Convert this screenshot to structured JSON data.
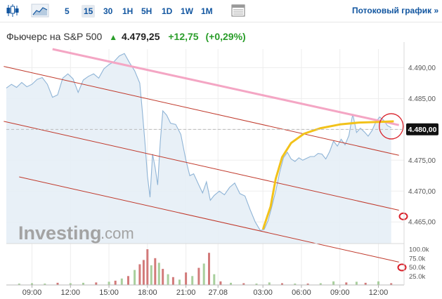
{
  "toolbar": {
    "timeframes": [
      "5",
      "15",
      "30",
      "1H",
      "5H",
      "1D",
      "1W",
      "1M"
    ],
    "active_timeframe": "15",
    "stream_link": "Потоковый график",
    "stream_arrow": "»"
  },
  "quote": {
    "name": "Фьючерс на S&P 500",
    "arrow": "▲",
    "price": "4.479,25",
    "change": "+12,75",
    "change_pct": "(+0,29%)"
  },
  "price_label": "4.480,00",
  "logo": {
    "main": "Investing",
    "suffix": ".com"
  },
  "colors": {
    "price_line": "#8fb4d6",
    "price_fill": "#e5eef6",
    "up_bar": "#a9cf9d",
    "down_bar": "#d27a7a",
    "channel": "#c0392b",
    "top_trend": "#f4a6c4",
    "curve": "#f2c21a",
    "circle": "#d9202a"
  },
  "chart_data": {
    "type": "line",
    "y_ticks": [
      "4.465,00",
      "4.470,00",
      "4.475,00",
      "4.480,00",
      "4.485,00",
      "4.490,00"
    ],
    "ylim": [
      4461.5,
      4493.0
    ],
    "x_ticks": [
      {
        "label": "09:00",
        "t": 2
      },
      {
        "label": "12:00",
        "t": 5
      },
      {
        "label": "15:00",
        "t": 8
      },
      {
        "label": "18:00",
        "t": 11
      },
      {
        "label": "21:00",
        "t": 14
      },
      {
        "label": "27.08",
        "t": 16.5
      },
      {
        "label": "03:00",
        "t": 20
      },
      {
        "label": "06:00",
        "t": 23
      },
      {
        "label": "09:00",
        "t": 26
      },
      {
        "label": "12:00",
        "t": 29
      }
    ],
    "x_range": [
      0,
      31
    ],
    "price": [
      [
        0.0,
        4486.7
      ],
      [
        0.4,
        4487.3
      ],
      [
        0.8,
        4486.8
      ],
      [
        1.2,
        4487.6
      ],
      [
        1.6,
        4486.9
      ],
      [
        2.0,
        4487.3
      ],
      [
        2.4,
        4488.1
      ],
      [
        2.8,
        4488.4
      ],
      [
        3.2,
        4487.3
      ],
      [
        3.6,
        4485.2
      ],
      [
        4.0,
        4485.6
      ],
      [
        4.4,
        4488.3
      ],
      [
        4.8,
        4489.0
      ],
      [
        5.2,
        4488.2
      ],
      [
        5.6,
        4486.0
      ],
      [
        6.0,
        4488.0
      ],
      [
        6.4,
        4488.6
      ],
      [
        6.8,
        4489.0
      ],
      [
        7.2,
        4488.3
      ],
      [
        7.6,
        4489.8
      ],
      [
        8.0,
        4490.5
      ],
      [
        8.4,
        4491.0
      ],
      [
        8.8,
        4491.9
      ],
      [
        9.2,
        4492.3
      ],
      [
        9.6,
        4490.8
      ],
      [
        10.0,
        4489.5
      ],
      [
        10.4,
        4487.5
      ],
      [
        10.6,
        4483.0
      ],
      [
        10.8,
        4478.0
      ],
      [
        11.0,
        4472.5
      ],
      [
        11.2,
        4469.0
      ],
      [
        11.4,
        4476.0
      ],
      [
        11.6,
        4473.8
      ],
      [
        11.8,
        4471.0
      ],
      [
        12.0,
        4478.0
      ],
      [
        12.2,
        4483.0
      ],
      [
        12.5,
        4482.3
      ],
      [
        12.8,
        4481.0
      ],
      [
        13.2,
        4480.8
      ],
      [
        13.6,
        4479.2
      ],
      [
        14.0,
        4475.0
      ],
      [
        14.3,
        4472.5
      ],
      [
        14.6,
        4472.8
      ],
      [
        15.0,
        4471.0
      ],
      [
        15.3,
        4469.7
      ],
      [
        15.6,
        4471.5
      ],
      [
        15.9,
        4468.5
      ],
      [
        16.2,
        4469.3
      ],
      [
        16.6,
        4470.0
      ],
      [
        17.0,
        4469.4
      ],
      [
        17.4,
        4470.6
      ],
      [
        17.8,
        4471.3
      ],
      [
        18.2,
        4469.6
      ],
      [
        18.6,
        4469.2
      ],
      [
        19.0,
        4467.0
      ],
      [
        19.4,
        4465.0
      ],
      [
        19.8,
        4463.6
      ],
      [
        20.1,
        4463.8
      ],
      [
        20.4,
        4465.2
      ],
      [
        20.7,
        4467.5
      ],
      [
        21.0,
        4470.0
      ],
      [
        21.3,
        4473.0
      ],
      [
        21.6,
        4475.4
      ],
      [
        21.9,
        4476.3
      ],
      [
        22.2,
        4475.2
      ],
      [
        22.5,
        4474.8
      ],
      [
        22.8,
        4475.4
      ],
      [
        23.1,
        4475.0
      ],
      [
        23.4,
        4475.3
      ],
      [
        23.7,
        4475.6
      ],
      [
        24.0,
        4475.6
      ],
      [
        24.3,
        4476.1
      ],
      [
        24.6,
        4476.0
      ],
      [
        24.9,
        4475.2
      ],
      [
        25.2,
        4476.4
      ],
      [
        25.5,
        4478.1
      ],
      [
        25.8,
        4477.3
      ],
      [
        26.1,
        4478.4
      ],
      [
        26.4,
        4477.5
      ],
      [
        26.7,
        4479.0
      ],
      [
        27.0,
        4482.5
      ],
      [
        27.3,
        4479.5
      ],
      [
        27.6,
        4480.2
      ],
      [
        27.9,
        4479.6
      ],
      [
        28.2,
        4478.9
      ],
      [
        28.5,
        4479.8
      ],
      [
        28.8,
        4481.2
      ],
      [
        29.1,
        4482.0
      ],
      [
        29.4,
        4481.5
      ],
      [
        29.7,
        4480.6
      ],
      [
        30.0,
        4480.3
      ]
    ],
    "last_price": 4480.0,
    "volume_ticks": [
      "25.0k",
      "50.0k",
      "75.0k",
      "100.0k"
    ],
    "volume_max": 110,
    "volume": [
      [
        1,
        4,
        "u"
      ],
      [
        2,
        5,
        "u"
      ],
      [
        3,
        4,
        "u"
      ],
      [
        4,
        6,
        "d"
      ],
      [
        5,
        5,
        "u"
      ],
      [
        6,
        6,
        "u"
      ],
      [
        7,
        7,
        "d"
      ],
      [
        8,
        9,
        "u"
      ],
      [
        8.5,
        12,
        "d"
      ],
      [
        9,
        18,
        "u"
      ],
      [
        9.5,
        25,
        "d"
      ],
      [
        10,
        42,
        "u"
      ],
      [
        10.4,
        58,
        "d"
      ],
      [
        10.7,
        70,
        "d"
      ],
      [
        11.0,
        100,
        "d"
      ],
      [
        11.3,
        55,
        "u"
      ],
      [
        11.6,
        75,
        "d"
      ],
      [
        11.9,
        62,
        "u"
      ],
      [
        12.2,
        45,
        "d"
      ],
      [
        12.6,
        30,
        "u"
      ],
      [
        13.0,
        22,
        "d"
      ],
      [
        13.5,
        15,
        "u"
      ],
      [
        14.0,
        35,
        "d"
      ],
      [
        14.5,
        25,
        "u"
      ],
      [
        15.0,
        48,
        "d"
      ],
      [
        15.4,
        60,
        "u"
      ],
      [
        15.8,
        90,
        "d"
      ],
      [
        16.2,
        30,
        "u"
      ],
      [
        16.7,
        10,
        "d"
      ],
      [
        17.5,
        6,
        "u"
      ],
      [
        18.5,
        5,
        "d"
      ],
      [
        19.5,
        4,
        "u"
      ],
      [
        20.5,
        7,
        "u"
      ],
      [
        21.5,
        5,
        "d"
      ],
      [
        22.5,
        4,
        "u"
      ],
      [
        23.5,
        4,
        "d"
      ],
      [
        24.5,
        5,
        "u"
      ],
      [
        25.5,
        10,
        "u"
      ],
      [
        26.5,
        7,
        "d"
      ],
      [
        27.3,
        9,
        "u"
      ],
      [
        28.0,
        6,
        "d"
      ],
      [
        29.0,
        10,
        "u"
      ],
      [
        30.0,
        5,
        "d"
      ]
    ]
  }
}
